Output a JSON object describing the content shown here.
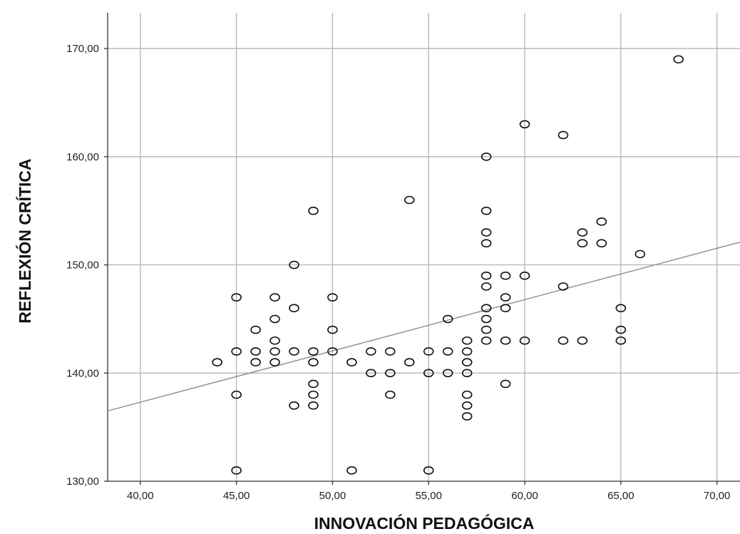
{
  "chart_data": {
    "type": "scatter",
    "title": "",
    "xlabel": "INNOVACIÓN PEDAGÓGICA",
    "ylabel": "REFLEXIÓN CRÍTICA",
    "xlim": [
      38.3,
      71.2
    ],
    "ylim": [
      130,
      173.3
    ],
    "xticks": [
      40,
      45,
      50,
      55,
      60,
      65,
      70
    ],
    "yticks": [
      130,
      140,
      150,
      160,
      170
    ],
    "xtick_labels": [
      "40,00",
      "45,00",
      "50,00",
      "55,00",
      "60,00",
      "65,00",
      "70,00"
    ],
    "ytick_labels": [
      "130,00",
      "140,00",
      "150,00",
      "160,00",
      "170,00"
    ],
    "grid": true,
    "fit_line": {
      "x": [
        38.3,
        71.2
      ],
      "y": [
        136.5,
        152.1
      ]
    },
    "points": [
      {
        "x": 44,
        "y": 141
      },
      {
        "x": 45,
        "y": 147
      },
      {
        "x": 45,
        "y": 142
      },
      {
        "x": 45,
        "y": 138
      },
      {
        "x": 45,
        "y": 131
      },
      {
        "x": 46,
        "y": 144
      },
      {
        "x": 46,
        "y": 142
      },
      {
        "x": 46,
        "y": 141
      },
      {
        "x": 47,
        "y": 147
      },
      {
        "x": 47,
        "y": 145
      },
      {
        "x": 47,
        "y": 143
      },
      {
        "x": 47,
        "y": 142
      },
      {
        "x": 47,
        "y": 141
      },
      {
        "x": 48,
        "y": 150
      },
      {
        "x": 48,
        "y": 146
      },
      {
        "x": 48,
        "y": 142
      },
      {
        "x": 48,
        "y": 137
      },
      {
        "x": 49,
        "y": 155
      },
      {
        "x": 49,
        "y": 142
      },
      {
        "x": 49,
        "y": 141
      },
      {
        "x": 49,
        "y": 139
      },
      {
        "x": 49,
        "y": 138
      },
      {
        "x": 49,
        "y": 137
      },
      {
        "x": 50,
        "y": 147
      },
      {
        "x": 50,
        "y": 144
      },
      {
        "x": 50,
        "y": 142
      },
      {
        "x": 51,
        "y": 141
      },
      {
        "x": 51,
        "y": 131
      },
      {
        "x": 52,
        "y": 142
      },
      {
        "x": 52,
        "y": 140
      },
      {
        "x": 53,
        "y": 142
      },
      {
        "x": 53,
        "y": 140
      },
      {
        "x": 53,
        "y": 138
      },
      {
        "x": 54,
        "y": 156
      },
      {
        "x": 54,
        "y": 141
      },
      {
        "x": 55,
        "y": 142
      },
      {
        "x": 55,
        "y": 140
      },
      {
        "x": 55,
        "y": 131
      },
      {
        "x": 56,
        "y": 145
      },
      {
        "x": 56,
        "y": 142
      },
      {
        "x": 56,
        "y": 140
      },
      {
        "x": 57,
        "y": 143
      },
      {
        "x": 57,
        "y": 142
      },
      {
        "x": 57,
        "y": 141
      },
      {
        "x": 57,
        "y": 140
      },
      {
        "x": 57,
        "y": 138
      },
      {
        "x": 57,
        "y": 137
      },
      {
        "x": 57,
        "y": 136
      },
      {
        "x": 58,
        "y": 160
      },
      {
        "x": 58,
        "y": 155
      },
      {
        "x": 58,
        "y": 153
      },
      {
        "x": 58,
        "y": 152
      },
      {
        "x": 58,
        "y": 149
      },
      {
        "x": 58,
        "y": 148
      },
      {
        "x": 58,
        "y": 146
      },
      {
        "x": 58,
        "y": 145
      },
      {
        "x": 58,
        "y": 144
      },
      {
        "x": 58,
        "y": 143
      },
      {
        "x": 59,
        "y": 149
      },
      {
        "x": 59,
        "y": 147
      },
      {
        "x": 59,
        "y": 146
      },
      {
        "x": 59,
        "y": 143
      },
      {
        "x": 59,
        "y": 139
      },
      {
        "x": 60,
        "y": 163
      },
      {
        "x": 60,
        "y": 149
      },
      {
        "x": 60,
        "y": 143
      },
      {
        "x": 62,
        "y": 162
      },
      {
        "x": 62,
        "y": 148
      },
      {
        "x": 62,
        "y": 143
      },
      {
        "x": 63,
        "y": 153
      },
      {
        "x": 63,
        "y": 152
      },
      {
        "x": 63,
        "y": 143
      },
      {
        "x": 64,
        "y": 154
      },
      {
        "x": 64,
        "y": 152
      },
      {
        "x": 65,
        "y": 146
      },
      {
        "x": 65,
        "y": 144
      },
      {
        "x": 65,
        "y": 143
      },
      {
        "x": 66,
        "y": 151
      },
      {
        "x": 68,
        "y": 169
      }
    ]
  }
}
